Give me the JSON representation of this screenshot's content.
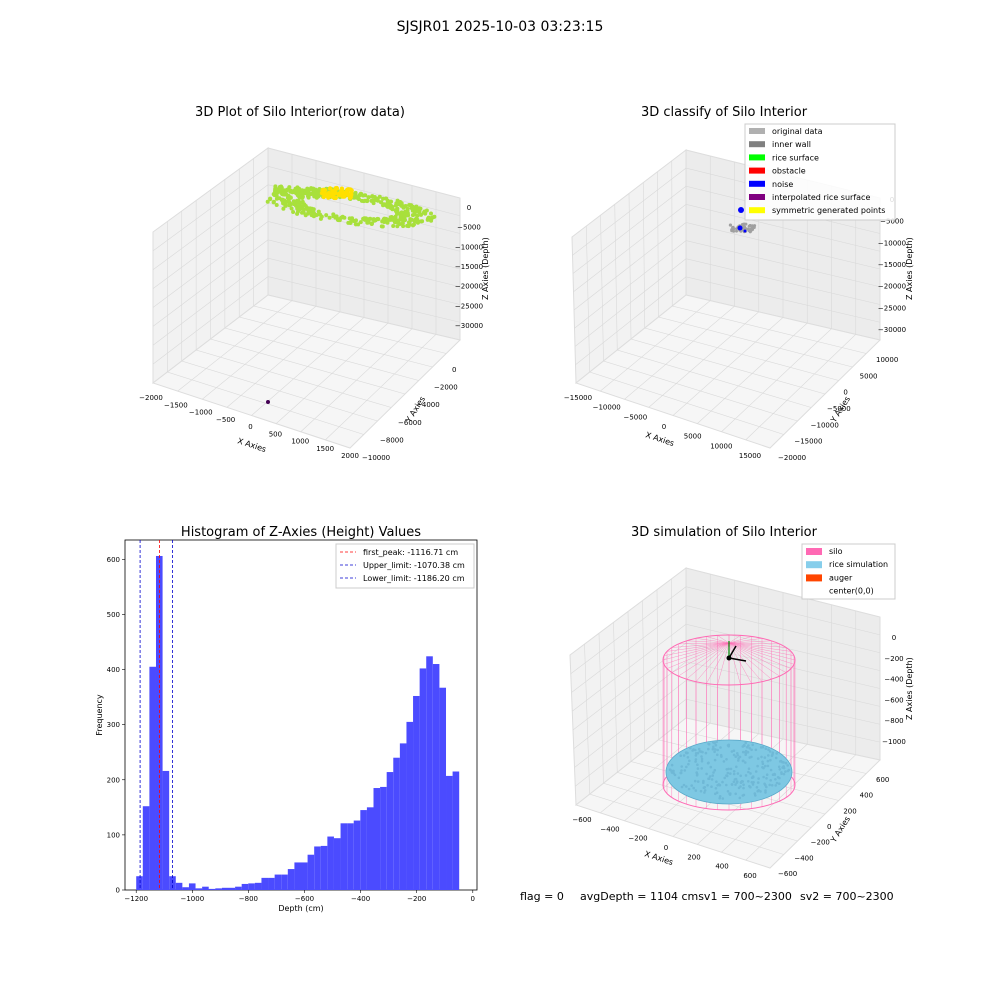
{
  "figure_title": "SJSJR01 2025-10-03 03:23:15",
  "status": {
    "flag": "flag = 0",
    "avg": "avgDepth = 1104 cmsv1 = 700~2300",
    "sv2": "sv2 = 700~2300"
  },
  "colors": {
    "raw_points": "#a8e03c",
    "yellow": "#ffe000",
    "hist_bar": "#4b4bff",
    "peak_line": "#ff0000",
    "limit_line": "#0000cc",
    "silo": "#ff69b4",
    "rice": "#7ec8e3",
    "auger": "#ff4500",
    "pane": "#f2f2f2",
    "grid": "#d9d9d9"
  },
  "chart_data": [
    {
      "type": "scatter3d",
      "title": "3D Plot of Silo Interior(row data)",
      "xlabel": "X Axies",
      "ylabel": "Y Axies",
      "zlabel": "Z Axies (Depth)",
      "xticks": [
        "−2000",
        "−1500",
        "−1000",
        "−500",
        "0",
        "500",
        "1000",
        "1500",
        "2000"
      ],
      "yticks": [
        "0",
        "−2000",
        "−4000",
        "−6000",
        "−8000",
        "−10000"
      ],
      "zticks": [
        "0",
        "−5000",
        "−10000",
        "−15000",
        "−20000",
        "−25000",
        "−30000"
      ],
      "series": [
        {
          "color": "#a8e03c",
          "z_range": [
            -1200,
            -100
          ]
        },
        {
          "color": "#ffe000",
          "z_range": [
            -200,
            0
          ]
        }
      ]
    },
    {
      "type": "scatter3d",
      "title": "3D classify of Silo Interior",
      "xlabel": "X Axies",
      "ylabel": "Y Axies",
      "zlabel": "Z Axies (Depth)",
      "xticks": [
        "−15000",
        "−10000",
        "−5000",
        "0",
        "5000",
        "10000",
        "15000"
      ],
      "yticks": [
        "10000",
        "5000",
        "0",
        "−5000",
        "−10000",
        "−15000",
        "−20000"
      ],
      "zticks": [
        "0",
        "−5000",
        "−10000",
        "−15000",
        "−20000",
        "−25000",
        "−30000"
      ],
      "legend": [
        {
          "label": "original data",
          "color": "#b0b0b0"
        },
        {
          "label": "inner wall",
          "color": "#808080"
        },
        {
          "label": "rice surface",
          "color": "#00ff00"
        },
        {
          "label": "obstacle",
          "color": "#ff0000"
        },
        {
          "label": "noise",
          "color": "#0000ff"
        },
        {
          "label": "interpolated rice surface",
          "color": "#800080"
        },
        {
          "label": "symmetric generated points",
          "color": "#ffff00"
        }
      ],
      "legend_position": "top-right"
    },
    {
      "type": "bar",
      "title": "Histogram of Z-Axies (Height) Values",
      "xlabel": "Depth (cm)",
      "ylabel": "Frequency",
      "xlim": [
        -1240,
        15
      ],
      "ylim": [
        0,
        635
      ],
      "xticks": [
        -1200,
        -1000,
        -800,
        -600,
        -400,
        -200,
        0
      ],
      "yticks": [
        0,
        100,
        200,
        300,
        400,
        500,
        600
      ],
      "bin_start": -1200,
      "bin_width": 23.5,
      "values": [
        25,
        152,
        405,
        606,
        216,
        25,
        13,
        5,
        12,
        3,
        6,
        2,
        3,
        4,
        4,
        6,
        11,
        12,
        13,
        22,
        22,
        28,
        28,
        38,
        50,
        50,
        64,
        79,
        80,
        97,
        94,
        121,
        121,
        126,
        145,
        150,
        185,
        187,
        214,
        240,
        266,
        305,
        352,
        402,
        424,
        410,
        367,
        207,
        215
      ],
      "vlines": [
        {
          "label": "first_peak: -1116.71 cm",
          "x": -1116.71,
          "color": "#ff0000"
        },
        {
          "label": "Upper_limit: -1070.38 cm",
          "x": -1070.38,
          "color": "#0000cc"
        },
        {
          "label": "Lower_limit: -1186.20 cm",
          "x": -1186.2,
          "color": "#0000cc"
        }
      ],
      "legend_position": "top-right"
    },
    {
      "type": "surface3d",
      "title": "3D simulation of Silo Interior",
      "xlabel": "X Axies",
      "ylabel": "Y Axies",
      "zlabel": "Z Axies (Depth)",
      "xticks": [
        "−600",
        "−400",
        "−200",
        "0",
        "200",
        "400",
        "600"
      ],
      "yticks": [
        "600",
        "400",
        "200",
        "0",
        "−200",
        "−400",
        "−600"
      ],
      "zticks": [
        "0",
        "−200",
        "−400",
        "−600",
        "−800",
        "−1000"
      ],
      "legend": [
        {
          "label": "silo",
          "color": "#ff69b4"
        },
        {
          "label": "rice simulation",
          "color": "#87ceeb"
        },
        {
          "label": "auger",
          "color": "#ff4500"
        },
        {
          "label": "center(0,0)",
          "color": "#ffffff"
        }
      ],
      "legend_position": "top-right"
    }
  ]
}
